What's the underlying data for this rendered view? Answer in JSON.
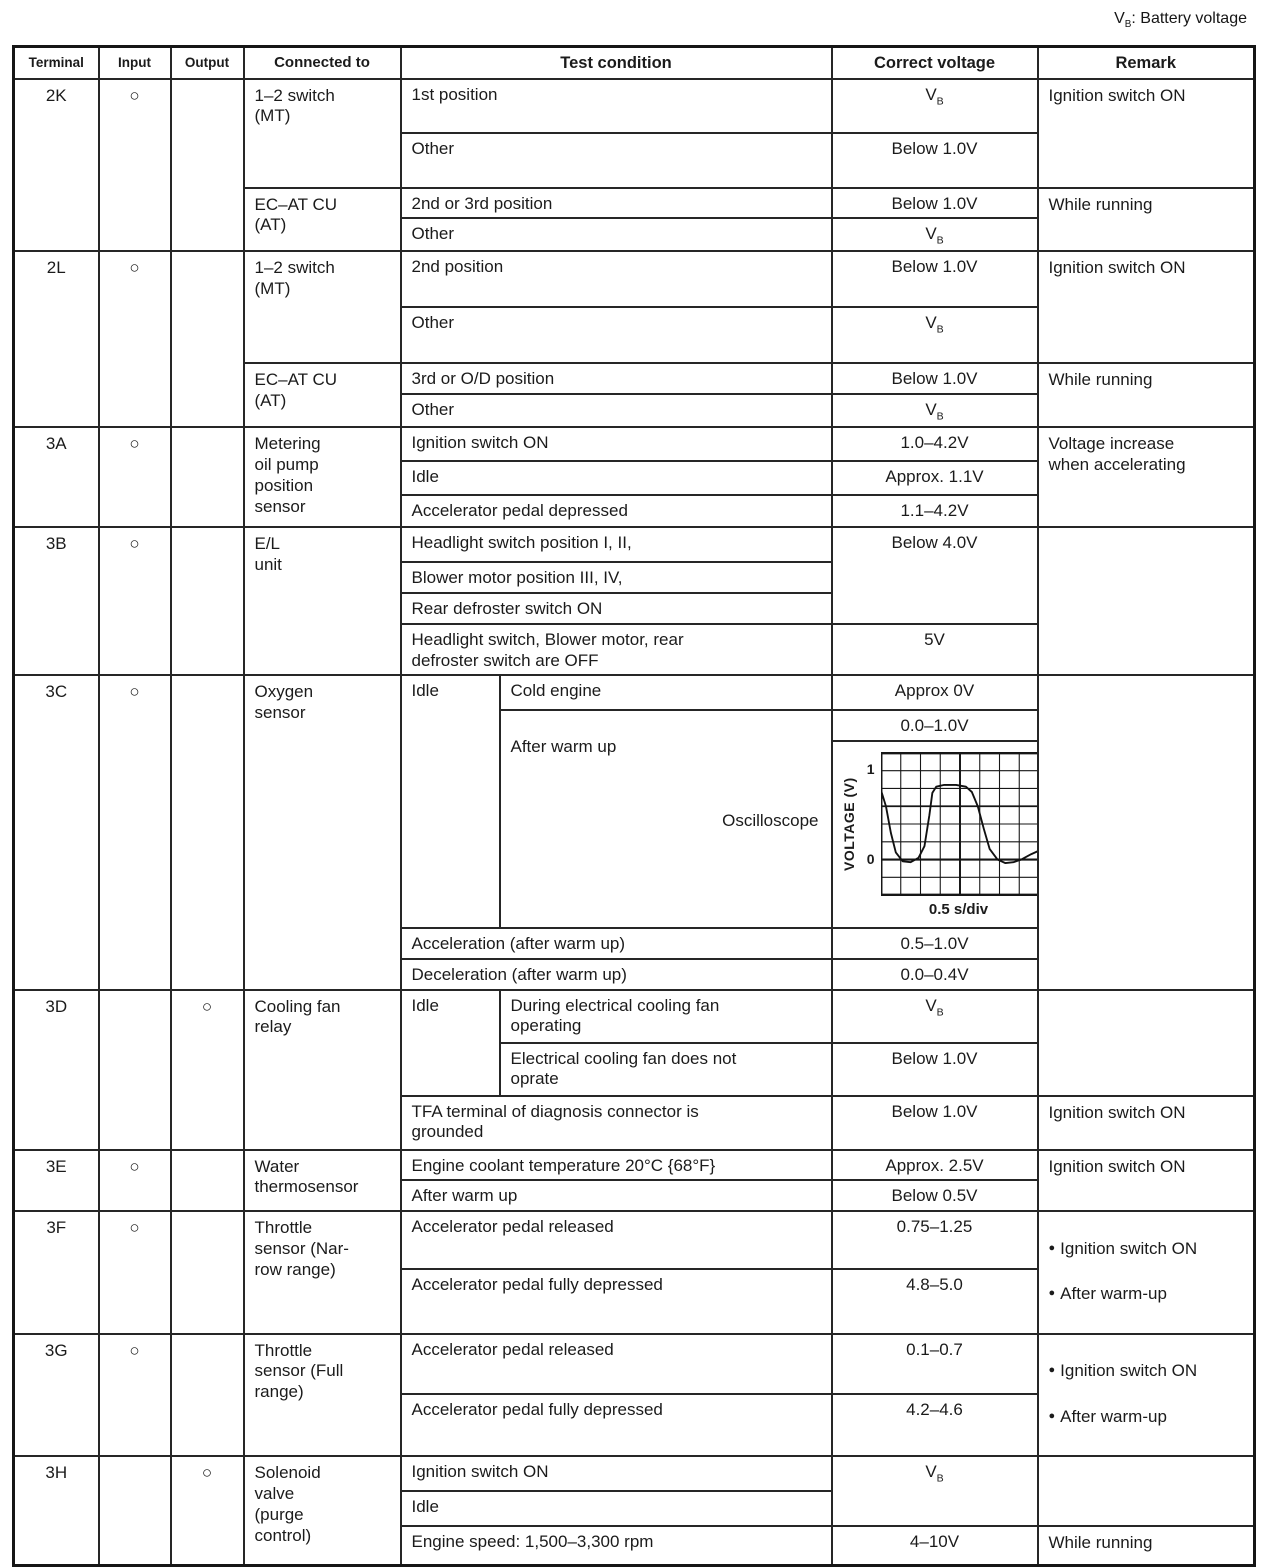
{
  "bullet": "●",
  "circle": "○",
  "vb": {
    "v": "V",
    "sub": "B"
  },
  "note": {
    "v": "V",
    "sub": "B",
    "text": ": Battery voltage"
  },
  "header": {
    "terminal": "Terminal",
    "input": "Input",
    "output": "Output",
    "connected_to": "Connected to",
    "test_condition": "Test condition",
    "correct_voltage": "Correct voltage",
    "remark": "Remark"
  },
  "r2k": {
    "terminal": "2K",
    "connected_mt": "1–2 switch\n(MT)",
    "cond1": "1st position",
    "cond2": "Other",
    "volt2": "Below 1.0V",
    "remark_mt": "Ignition switch ON",
    "connected_at": "EC–AT CU\n(AT)",
    "cond3": "2nd or 3rd position",
    "volt3": "Below 1.0V",
    "cond4": "Other",
    "remark_at": "While running"
  },
  "r2l": {
    "terminal": "2L",
    "connected_mt": "1–2 switch\n(MT)",
    "cond1": "2nd position",
    "volt1": "Below 1.0V",
    "cond2": "Other",
    "remark_mt": "Ignition switch ON",
    "connected_at": "EC–AT CU\n(AT)",
    "cond3": "3rd or O/D position",
    "volt3": "Below 1.0V",
    "cond4": "Other",
    "remark_at": "While running"
  },
  "r3a": {
    "terminal": "3A",
    "connected": "Metering\noil pump\nposition\nsensor",
    "cond1": "Ignition switch ON",
    "volt1": "1.0–4.2V",
    "cond2": "Idle",
    "volt2": "Approx. 1.1V",
    "cond3": "Accelerator pedal depressed",
    "volt3": "1.1–4.2V",
    "remark": "Voltage increase\nwhen accelerating"
  },
  "r3b": {
    "terminal": "3B",
    "connected": "E/L\nunit",
    "cond1": "Headlight switch position I, II,",
    "cond2": "Blower motor position III, IV,",
    "cond3": "Rear defroster switch ON",
    "volt123": "Below 4.0V",
    "cond4": "Headlight switch, Blower motor, rear\ndefroster switch are OFF",
    "volt4": "5V"
  },
  "r3c": {
    "terminal": "3C",
    "connected": "Oxygen\nsensor",
    "idle": "Idle",
    "cond1": "Cold engine",
    "volt1": "Approx 0V",
    "cond2": "After warm up",
    "volt2": "0.0–1.0V",
    "oscilloscope_label": "Oscilloscope",
    "oscilloscope": {
      "type": "line",
      "ylabel": "VOLTAGE (V)",
      "xlabel": "0.5 s/div",
      "yticks": [
        {
          "label": "1",
          "value": 1
        },
        {
          "label": "0",
          "value": 0
        }
      ],
      "x_divisions": 8,
      "y_divisions": 8,
      "volts_per_div": 0.2,
      "seconds_per_div": 0.5,
      "y_top_volts": 1.2,
      "waveform": [
        [
          0,
          0.78
        ],
        [
          0.25,
          0.6
        ],
        [
          0.5,
          0.3
        ],
        [
          0.75,
          0.08
        ],
        [
          1.1,
          -0.02
        ],
        [
          1.5,
          -0.03
        ],
        [
          1.9,
          0.02
        ],
        [
          2.2,
          0.15
        ],
        [
          2.45,
          0.5
        ],
        [
          2.6,
          0.75
        ],
        [
          2.8,
          0.82
        ],
        [
          3.2,
          0.84
        ],
        [
          3.8,
          0.84
        ],
        [
          4.3,
          0.82
        ],
        [
          4.6,
          0.76
        ],
        [
          4.9,
          0.6
        ],
        [
          5.2,
          0.35
        ],
        [
          5.5,
          0.12
        ],
        [
          5.9,
          0.0
        ],
        [
          6.3,
          -0.04
        ],
        [
          6.7,
          -0.03
        ],
        [
          7.1,
          0.0
        ],
        [
          7.6,
          0.06
        ],
        [
          8,
          0.1
        ]
      ]
    },
    "cond4": "Acceleration (after warm up)",
    "volt4": "0.5–1.0V",
    "cond5": "Deceleration (after warm up)",
    "volt5": "0.0–0.4V"
  },
  "r3d": {
    "terminal": "3D",
    "connected": "Cooling fan\nrelay",
    "idle": "Idle",
    "cond1": "During electrical cooling fan\noperating",
    "cond2": "Electrical cooling fan does not\noprate",
    "volt2": "Below 1.0V",
    "cond3": "TFA terminal of diagnosis connector is\ngrounded",
    "volt3": "Below 1.0V",
    "remark3": "Ignition switch ON"
  },
  "r3e": {
    "terminal": "3E",
    "connected": "Water\nthermosensor",
    "cond1": "Engine coolant temperature 20°C {68°F}",
    "volt1": "Approx. 2.5V",
    "cond2": "After warm up",
    "volt2": "Below 0.5V",
    "remark": "Ignition switch ON"
  },
  "r3f": {
    "terminal": "3F",
    "connected": "Throttle\nsensor (Nar-\nrow range)",
    "cond1": "Accelerator pedal released",
    "volt1": "0.75–1.25",
    "cond2": "Accelerator pedal fully depressed",
    "volt2": "4.8–5.0",
    "remarks": [
      "Ignition switch ON",
      "After warm-up"
    ]
  },
  "r3g": {
    "terminal": "3G",
    "connected": "Throttle\nsensor (Full\nrange)",
    "cond1": "Accelerator pedal released",
    "volt1": "0.1–0.7",
    "cond2": "Accelerator pedal fully depressed",
    "volt2": "4.2–4.6",
    "remarks": [
      "Ignition switch ON",
      "After warm-up"
    ]
  },
  "r3h": {
    "terminal": "3H",
    "connected": "Solenoid\nvalve\n(purge\ncontrol)",
    "cond1": "Ignition switch ON",
    "cond2": "Idle",
    "cond3": "Engine speed: 1,500–3,300 rpm",
    "volt3": "4–10V",
    "remark3": "While running"
  },
  "colors": {
    "ink": "#1b1b1b",
    "paper": "#ffffff"
  }
}
